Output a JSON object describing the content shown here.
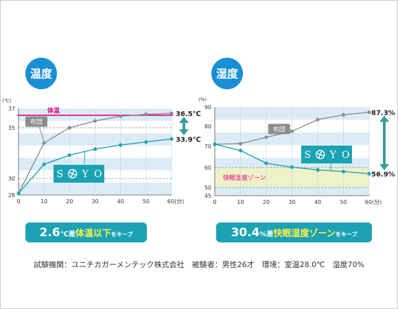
{
  "colors": {
    "band": "#dcecf7",
    "zone": "#eef2c8",
    "futon": "#8c8c8c",
    "soyo": "#1ba3b3",
    "magenta": "#e4007f",
    "circle": "#1a8fd6",
    "badge": "#1ba3b3",
    "badge_highlight": "#fff14a",
    "arrow": "#3a9c9c"
  },
  "chart_data": [
    {
      "type": "line",
      "title": "温度",
      "unit_label": "(℃)",
      "x": [
        0,
        10,
        20,
        30,
        40,
        50,
        60
      ],
      "x_tick_labels": [
        "0",
        "10",
        "20",
        "30",
        "40",
        "50",
        "60(分)"
      ],
      "y_ticks": [
        28,
        30,
        35,
        37
      ],
      "ylim": [
        28,
        37
      ],
      "reference_lines": [
        {
          "y": 36.3,
          "label": "体温",
          "color": "magenta",
          "style": "solid"
        },
        {
          "y": 35,
          "style": "dashed"
        },
        {
          "y": 30,
          "style": "dashed"
        }
      ],
      "series": [
        {
          "name": "布団",
          "color": "futon",
          "values": [
            28.2,
            33.5,
            35.0,
            35.7,
            36.2,
            36.4,
            36.5
          ]
        },
        {
          "name": "SOYO",
          "color": "soyo",
          "values": [
            28.2,
            31.4,
            32.3,
            32.9,
            33.3,
            33.6,
            33.9
          ]
        }
      ],
      "end_labels": [
        "36.5℃",
        "33.9℃"
      ],
      "badge": {
        "num": "2.6",
        "unit": "℃差",
        "highlight": "体温以下",
        "tail": "をキープ"
      }
    },
    {
      "type": "line",
      "title": "湿度",
      "unit_label": "(%)",
      "x": [
        0,
        10,
        20,
        30,
        40,
        50,
        60
      ],
      "x_tick_labels": [
        "0",
        "10",
        "20",
        "30",
        "40",
        "50",
        "60(分)"
      ],
      "y_ticks": [
        45,
        50,
        60,
        70,
        80,
        90
      ],
      "ylim": [
        45,
        90
      ],
      "zone": {
        "from": 50,
        "to": 60,
        "label": "快眠湿度ゾーン"
      },
      "reference_lines": [
        {
          "y": 60,
          "style": "dashed"
        },
        {
          "y": 50,
          "style": "dashed"
        }
      ],
      "series": [
        {
          "name": "布団",
          "color": "futon",
          "values": [
            71.0,
            71.3,
            74.5,
            77.5,
            83.5,
            86.0,
            87.3
          ]
        },
        {
          "name": "SOYO",
          "color": "soyo",
          "values": [
            71.0,
            68.0,
            62.0,
            60.2,
            58.8,
            58.0,
            56.9
          ]
        }
      ],
      "end_labels": [
        "87.3%",
        "56.9%"
      ],
      "badge": {
        "num": "30.4",
        "unit": "%差",
        "highlight": "快眠湿度ゾーン",
        "tail": "をキープ"
      }
    }
  ],
  "footer": {
    "text": "試験機関：ユニチカガーメンテック株式会社　被験者：男性26才　環境：室温28.0℃　湿度70%"
  },
  "logo_letters": [
    "S",
    "Y",
    "O"
  ]
}
